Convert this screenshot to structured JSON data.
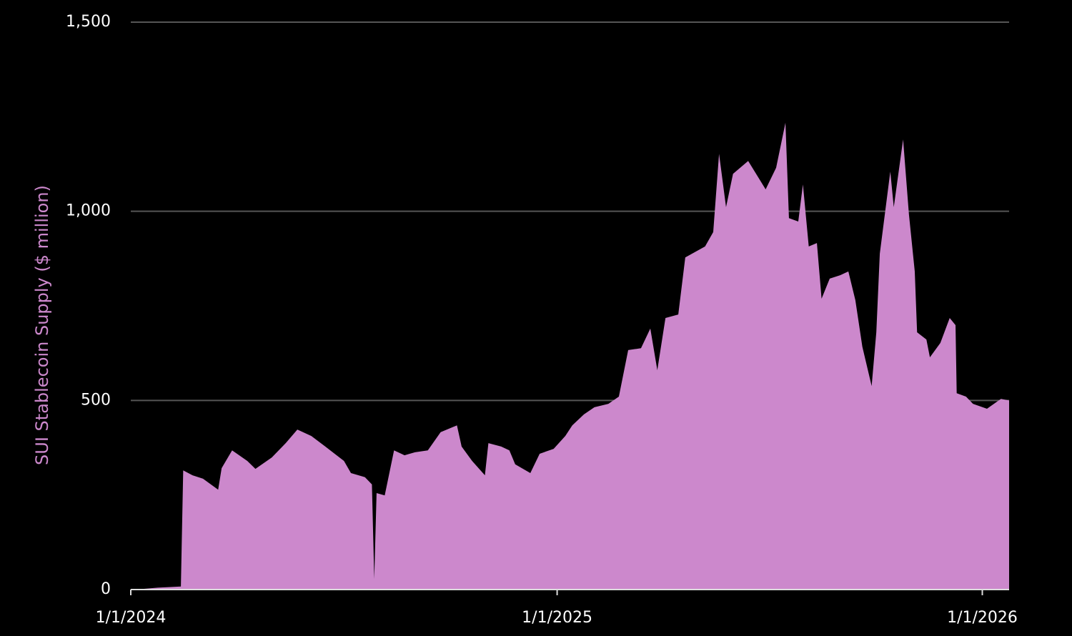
{
  "chart_data": {
    "type": "area",
    "y_label": "SUI Stablecoin Supply ($ million)",
    "x": [
      "2024-01-05",
      "2024-01-24",
      "2024-02-13",
      "2024-02-15",
      "2024-02-23",
      "2024-03-03",
      "2024-03-16",
      "2024-03-19",
      "2024-03-28",
      "2024-04-10",
      "2024-04-17",
      "2024-05-01",
      "2024-05-13",
      "2024-05-23",
      "2024-06-04",
      "2024-06-16",
      "2024-07-02",
      "2024-07-08",
      "2024-07-20",
      "2024-07-26",
      "2024-07-28",
      "2024-07-30",
      "2024-08-06",
      "2024-08-14",
      "2024-08-23",
      "2024-09-01",
      "2024-09-12",
      "2024-09-23",
      "2024-10-07",
      "2024-10-11",
      "2024-10-20",
      "2024-10-31",
      "2024-11-03",
      "2024-11-14",
      "2024-11-21",
      "2024-11-26",
      "2024-12-09",
      "2024-12-17",
      "2024-12-29",
      "2025-01-08",
      "2025-01-14",
      "2025-01-24",
      "2025-02-02",
      "2025-02-14",
      "2025-02-23",
      "2025-03-03",
      "2025-03-14",
      "2025-03-22",
      "2025-03-28",
      "2025-04-04",
      "2025-04-15",
      "2025-04-21",
      "2025-05-08",
      "2025-05-15",
      "2025-05-20",
      "2025-05-26",
      "2025-06-01",
      "2025-06-14",
      "2025-06-29",
      "2025-07-08",
      "2025-07-16",
      "2025-07-19",
      "2025-07-27",
      "2025-07-31",
      "2025-08-05",
      "2025-08-12",
      "2025-08-16",
      "2025-08-23",
      "2025-09-01",
      "2025-09-08",
      "2025-09-14",
      "2025-09-20",
      "2025-09-28",
      "2025-10-02",
      "2025-10-05",
      "2025-10-14",
      "2025-10-17",
      "2025-10-25",
      "2025-10-30",
      "2025-11-04",
      "2025-11-06",
      "2025-11-14",
      "2025-11-17",
      "2025-11-26",
      "2025-12-04",
      "2025-12-09",
      "2025-12-10",
      "2025-12-18",
      "2025-12-24",
      "2026-01-05",
      "2026-01-17",
      "2026-01-24"
    ],
    "values": [
      0,
      5,
      8,
      315,
      302,
      293,
      264,
      321,
      368,
      340,
      319,
      349,
      387,
      423,
      406,
      378,
      340,
      308,
      297,
      278,
      28,
      255,
      249,
      368,
      355,
      363,
      368,
      416,
      434,
      378,
      340,
      302,
      387,
      378,
      368,
      331,
      308,
      359,
      372,
      406,
      434,
      463,
      482,
      491,
      510,
      633,
      638,
      690,
      580,
      718,
      727,
      878,
      907,
      945,
      1152,
      1011,
      1099,
      1133,
      1058,
      1115,
      1234,
      982,
      973,
      1071,
      907,
      916,
      769,
      822,
      831,
      841,
      765,
      642,
      538,
      680,
      888,
      1105,
      1011,
      1190,
      992,
      841,
      680,
      661,
      614,
      652,
      718,
      699,
      519,
      510,
      491,
      478,
      504,
      500
    ],
    "color": "#cc88cc",
    "xlim": [
      "2024-01-01",
      "2026-01-24"
    ],
    "xticks": [
      {
        "value": "2024-01-01",
        "label": "1/1/2024"
      },
      {
        "value": "2025-01-01",
        "label": "1/1/2025"
      },
      {
        "value": "2026-01-01",
        "label": "1/1/2026"
      }
    ],
    "ylim": [
      0,
      1500
    ],
    "yticks": [
      0,
      500,
      {
        "value": 1000,
        "label": "1,000"
      },
      {
        "value": 1500,
        "label": "1,500"
      }
    ],
    "grid": true
  }
}
